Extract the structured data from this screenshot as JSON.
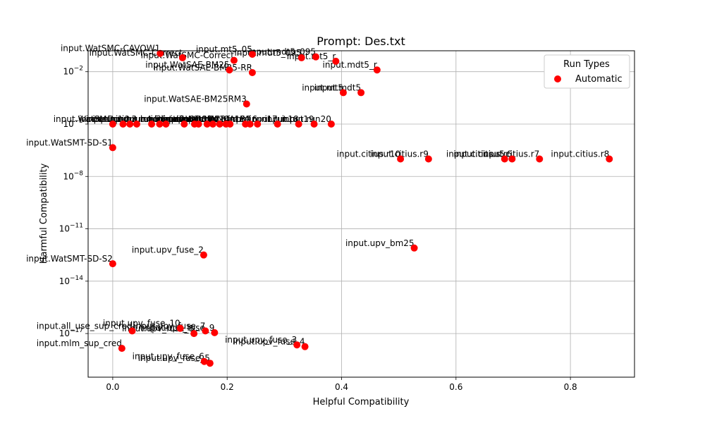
{
  "chart_data": {
    "type": "scatter",
    "title": "Prompt: Des.txt",
    "xlabel": "Helpful Compatibility",
    "ylabel": "Harmful Compatibility",
    "xlim": [
      -0.043,
      0.912
    ],
    "ylog": true,
    "ylim_log10": [
      -19.5,
      -0.8
    ],
    "x_ticks": [
      {
        "value": 0.0,
        "label": "0.0"
      },
      {
        "value": 0.2,
        "label": "0.2"
      },
      {
        "value": 0.4,
        "label": "0.4"
      },
      {
        "value": 0.6,
        "label": "0.6"
      },
      {
        "value": 0.8,
        "label": "0.8"
      }
    ],
    "y_ticks": [
      {
        "exp": -2,
        "label": "10",
        "sup": "−2"
      },
      {
        "exp": -5,
        "label": "10",
        "sup": "−5"
      },
      {
        "exp": -8,
        "label": "10",
        "sup": "−8"
      },
      {
        "exp": -11,
        "label": "10",
        "sup": "−11"
      },
      {
        "exp": -14,
        "label": "10",
        "sup": "−14"
      },
      {
        "exp": -17,
        "label": "10",
        "sup": "−17"
      }
    ],
    "grid": true,
    "legend": {
      "title": "Run Types",
      "position": "top-right",
      "entries": [
        {
          "label": "Automatic",
          "color": "#ff0000"
        }
      ]
    },
    "marker_color": "#ff0000",
    "series": [
      {
        "name": "Automatic",
        "points": [
          {
            "x": 0.083,
            "log10y": -0.95,
            "label": "input.WatSMC-CAVOW1"
          },
          {
            "x": 0.122,
            "log10y": -1.2,
            "label": "input.WatSMC-Correct"
          },
          {
            "x": 0.212,
            "log10y": -1.35,
            "label": "input.WatSMC-Correct"
          },
          {
            "x": 0.244,
            "log10y": -1.0,
            "label": "input.mt5_05"
          },
          {
            "x": 0.33,
            "log10y": -1.2,
            "label": "input.mdt5_095"
          },
          {
            "x": 0.355,
            "log10y": -1.15,
            "label": "input.mdt5_095"
          },
          {
            "x": 0.39,
            "log10y": -1.4,
            "label": "input.mt5_r"
          },
          {
            "x": 0.462,
            "log10y": -1.9,
            "label": "input.mdt5_r"
          },
          {
            "x": 0.204,
            "log10y": -1.9,
            "label": "input.WatSAE-BM25"
          },
          {
            "x": 0.244,
            "log10y": -2.05,
            "label": "input.WatSAE-BM25-RR"
          },
          {
            "x": 0.403,
            "log10y": -3.2,
            "label": "input.mt5"
          },
          {
            "x": 0.434,
            "log10y": -3.2,
            "label": "input.mdt5"
          },
          {
            "x": 0.234,
            "log10y": -3.85,
            "label": "input.WatSAE-BM25RM3"
          },
          {
            "x": 0.0,
            "log10y": -5.0,
            "label": "input.WatSMC"
          },
          {
            "x": 0.018,
            "log10y": -5.0,
            "label": "input.run1"
          },
          {
            "x": 0.03,
            "log10y": -5.0,
            "label": "input.run2"
          },
          {
            "x": 0.042,
            "log10y": -5.0,
            "label": "input.run3"
          },
          {
            "x": 0.068,
            "log10y": -5.0,
            "label": "input.run4"
          },
          {
            "x": 0.082,
            "log10y": -5.0,
            "label": "input.run5"
          },
          {
            "x": 0.093,
            "log10y": -5.0,
            "label": "input.run6"
          },
          {
            "x": 0.125,
            "log10y": -5.0,
            "label": "input.run7"
          },
          {
            "x": 0.143,
            "log10y": -5.0,
            "label": "input.run8"
          },
          {
            "x": 0.15,
            "log10y": -5.0,
            "label": "input.run9"
          },
          {
            "x": 0.165,
            "log10y": -5.0,
            "label": "input.run10"
          },
          {
            "x": 0.175,
            "log10y": -5.0,
            "label": "input.run11"
          },
          {
            "x": 0.187,
            "log10y": -5.0,
            "label": "input.run12"
          },
          {
            "x": 0.198,
            "log10y": -5.0,
            "label": "input.run13"
          },
          {
            "x": 0.205,
            "log10y": -5.0,
            "label": "input.run14"
          },
          {
            "x": 0.232,
            "log10y": -5.0,
            "label": "input.run15"
          },
          {
            "x": 0.24,
            "log10y": -5.0,
            "label": "input.WatSMC-CALPA"
          },
          {
            "x": 0.253,
            "log10y": -5.0,
            "label": "input.run16"
          },
          {
            "x": 0.288,
            "log10y": -5.0,
            "label": "input.run17"
          },
          {
            "x": 0.325,
            "log10y": -5.0,
            "label": "input.run18"
          },
          {
            "x": 0.352,
            "log10y": -5.0,
            "label": "input.run19"
          },
          {
            "x": 0.382,
            "log10y": -5.0,
            "label": "input.run20"
          },
          {
            "x": 0.0,
            "log10y": -6.35,
            "label": "input.WatSMT-SD-S1"
          },
          {
            "x": 0.503,
            "log10y": -7.0,
            "label": "input.citius.r10"
          },
          {
            "x": 0.552,
            "log10y": -7.0,
            "label": "input.citius.r9"
          },
          {
            "x": 0.685,
            "log10y": -7.0,
            "label": "input.citius.r5"
          },
          {
            "x": 0.698,
            "log10y": -7.0,
            "label": "input.citius.r6"
          },
          {
            "x": 0.746,
            "log10y": -7.0,
            "label": "input.citius.r7"
          },
          {
            "x": 0.868,
            "log10y": -7.0,
            "label": "input.citius.r8"
          },
          {
            "x": 0.527,
            "log10y": -12.1,
            "label": "input.upv_bm25"
          },
          {
            "x": 0.159,
            "log10y": -12.5,
            "label": "input.upv_fuse_2"
          },
          {
            "x": 0.0,
            "log10y": -13.0,
            "label": "input.WatSMT-SD-S2"
          },
          {
            "x": 0.118,
            "log10y": -16.7,
            "label": "input.upv_fuse_10"
          },
          {
            "x": 0.034,
            "log10y": -16.85,
            "label": "input.all_use_sup_cred"
          },
          {
            "x": 0.162,
            "log10y": -16.85,
            "label": "input.upv_fuse_7"
          },
          {
            "x": 0.142,
            "log10y": -17.0,
            "label": "input.upv_fuse_8"
          },
          {
            "x": 0.178,
            "log10y": -16.95,
            "label": "input.upv_fuse_9"
          },
          {
            "x": 0.322,
            "log10y": -17.65,
            "label": "input.upv_fuse_3"
          },
          {
            "x": 0.336,
            "log10y": -17.75,
            "label": "input.upv_fuse_4"
          },
          {
            "x": 0.016,
            "log10y": -17.85,
            "label": "input.mlm_sup_cred"
          },
          {
            "x": 0.16,
            "log10y": -18.6,
            "label": "input.upv_fuse_6"
          },
          {
            "x": 0.17,
            "log10y": -18.7,
            "label": "input.upv_fuse_5"
          }
        ]
      }
    ]
  }
}
